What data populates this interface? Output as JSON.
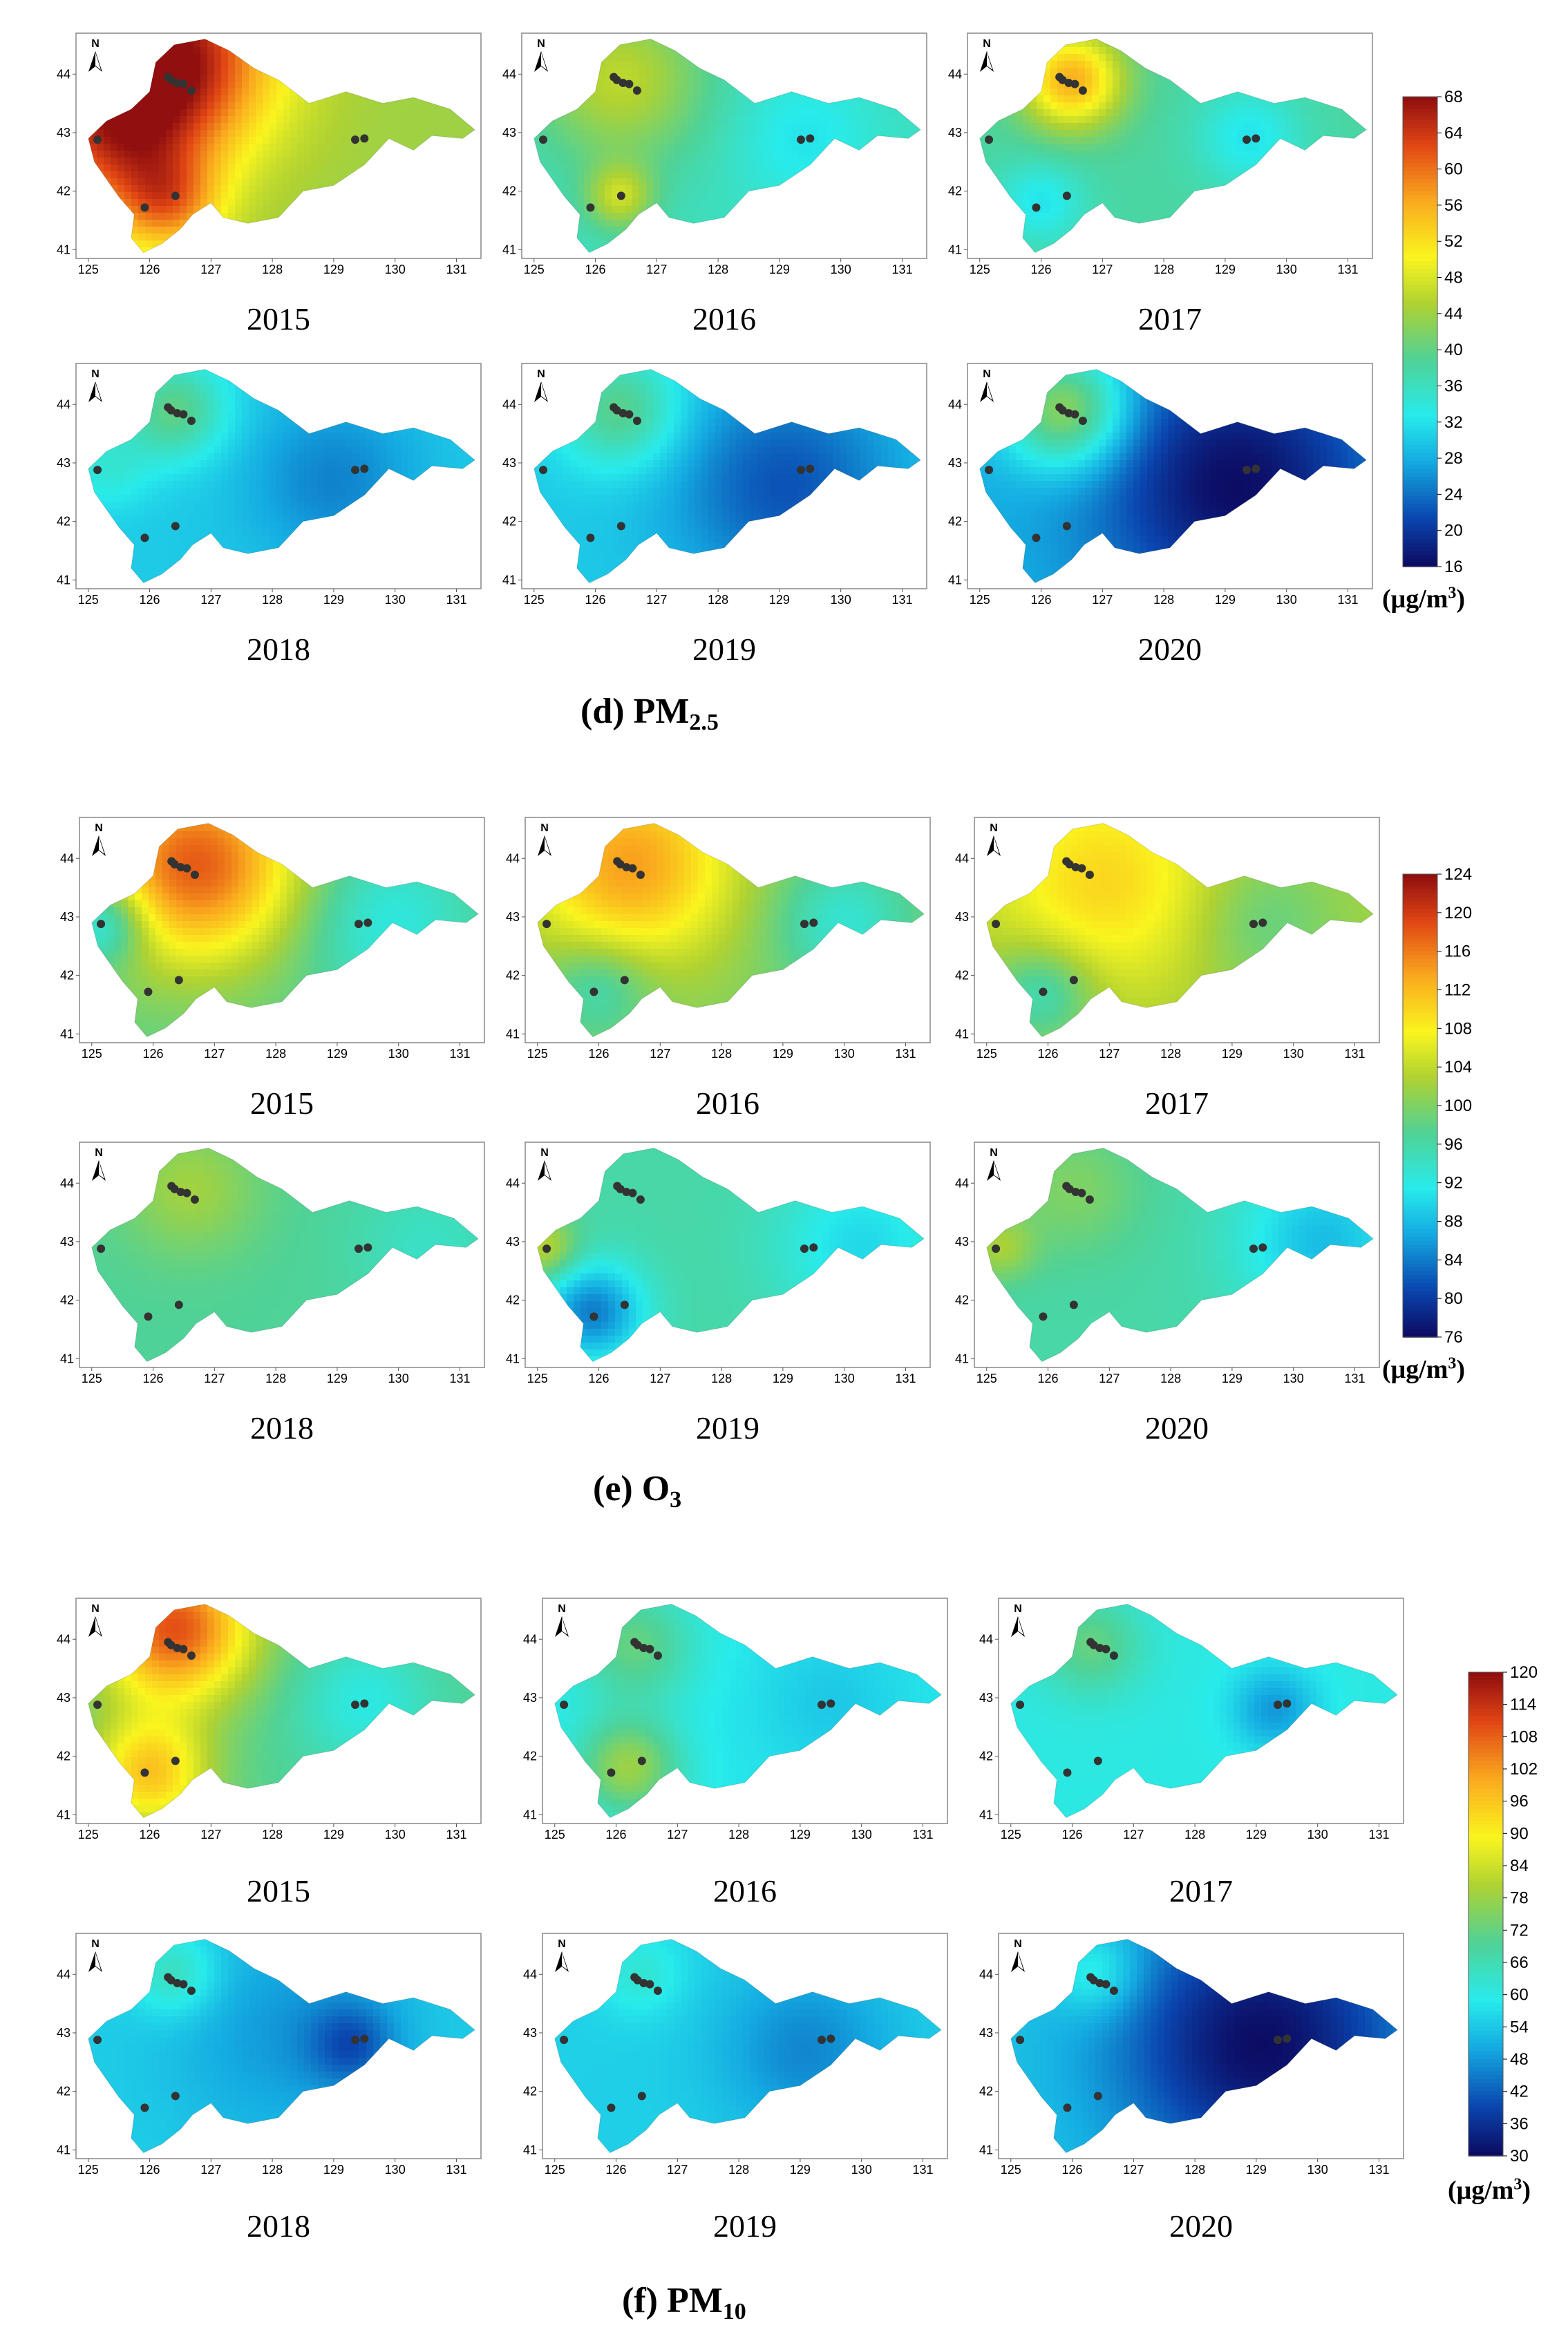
{
  "chart_data": [
    {
      "type": "heatmap",
      "panel": "d",
      "title": "(d) PM",
      "title_sub": "2.5",
      "pollutant": "PM2.5",
      "unit_prefix": "(μg/m",
      "unit_sup": "3",
      "unit_suffix": ")",
      "colorbar": {
        "ticks": [
          68,
          64,
          60,
          56,
          52,
          48,
          44,
          40,
          36,
          32,
          28,
          24,
          20,
          16
        ],
        "range": [
          16,
          68
        ]
      },
      "x_ticks": [
        "125",
        "126",
        "127",
        "128",
        "129",
        "130",
        "131"
      ],
      "y_ticks": [
        "44",
        "43",
        "42",
        "41"
      ],
      "north_label": "N",
      "years": [
        "2015",
        "2016",
        "2017",
        "2018",
        "2019",
        "2020"
      ],
      "maps": [
        {
          "year": "2015",
          "base": 44,
          "hotspots": [
            {
              "lon": 126.3,
              "lat": 44.3,
              "value": 68,
              "r": 1.2
            },
            {
              "lon": 125.3,
              "lat": 42.9,
              "value": 58,
              "r": 1.0
            },
            {
              "lon": 126.3,
              "lat": 41.8,
              "value": 56,
              "r": 0.6
            }
          ]
        },
        {
          "year": "2016",
          "base": 36,
          "hotspots": [
            {
              "lon": 126.4,
              "lat": 43.9,
              "value": 46,
              "r": 1.0
            },
            {
              "lon": 126.4,
              "lat": 41.9,
              "value": 46,
              "r": 0.4
            },
            {
              "lon": 129.4,
              "lat": 42.9,
              "value": 32,
              "r": 0.8
            }
          ]
        },
        {
          "year": "2017",
          "base": 38,
          "hotspots": [
            {
              "lon": 126.5,
              "lat": 43.9,
              "value": 56,
              "r": 0.6
            },
            {
              "lon": 126.0,
              "lat": 41.8,
              "value": 32,
              "r": 0.5
            },
            {
              "lon": 129.4,
              "lat": 42.9,
              "value": 32,
              "r": 0.6
            }
          ]
        },
        {
          "year": "2018",
          "base": 30,
          "hotspots": [
            {
              "lon": 126.4,
              "lat": 43.9,
              "value": 40,
              "r": 0.6
            },
            {
              "lon": 125.3,
              "lat": 42.9,
              "value": 34,
              "r": 0.5
            },
            {
              "lon": 129.0,
              "lat": 42.7,
              "value": 25,
              "r": 1.0
            }
          ]
        },
        {
          "year": "2019",
          "base": 30,
          "hotspots": [
            {
              "lon": 126.4,
              "lat": 43.9,
              "value": 40,
              "r": 0.7
            },
            {
              "lon": 129.1,
              "lat": 42.6,
              "value": 22,
              "r": 1.3
            }
          ]
        },
        {
          "year": "2020",
          "base": 28,
          "hotspots": [
            {
              "lon": 126.4,
              "lat": 43.9,
              "value": 44,
              "r": 0.7
            },
            {
              "lon": 129.2,
              "lat": 42.6,
              "value": 16,
              "r": 1.6
            }
          ]
        }
      ]
    },
    {
      "type": "heatmap",
      "panel": "e",
      "title": "(e) O",
      "title_sub": "3",
      "pollutant": "O3",
      "unit_prefix": "(μg/m",
      "unit_sup": "3",
      "unit_suffix": ")",
      "colorbar": {
        "ticks": [
          124,
          120,
          116,
          112,
          108,
          104,
          100,
          96,
          92,
          88,
          84,
          80,
          76
        ],
        "range": [
          76,
          124
        ]
      },
      "x_ticks": [
        "125",
        "126",
        "127",
        "128",
        "129",
        "130",
        "131"
      ],
      "y_ticks": [
        "44",
        "43",
        "42",
        "41"
      ],
      "north_label": "N",
      "years": [
        "2015",
        "2016",
        "2017",
        "2018",
        "2019",
        "2020"
      ],
      "maps": [
        {
          "year": "2015",
          "base": 98,
          "hotspots": [
            {
              "lon": 126.7,
              "lat": 43.9,
              "value": 118,
              "r": 1.2
            },
            {
              "lon": 125.2,
              "lat": 42.9,
              "value": 88,
              "r": 0.5
            },
            {
              "lon": 129.8,
              "lat": 42.9,
              "value": 92,
              "r": 1.0
            }
          ]
        },
        {
          "year": "2016",
          "base": 100,
          "hotspots": [
            {
              "lon": 126.5,
              "lat": 43.9,
              "value": 114,
              "r": 1.2
            },
            {
              "lon": 126.0,
              "lat": 41.8,
              "value": 94,
              "r": 0.6
            },
            {
              "lon": 130.0,
              "lat": 42.9,
              "value": 93,
              "r": 0.8
            }
          ]
        },
        {
          "year": "2017",
          "base": 102,
          "hotspots": [
            {
              "lon": 126.9,
              "lat": 43.6,
              "value": 110,
              "r": 1.3
            },
            {
              "lon": 125.9,
              "lat": 41.7,
              "value": 94,
              "r": 0.6
            },
            {
              "lon": 129.5,
              "lat": 42.9,
              "value": 98,
              "r": 0.8
            }
          ]
        },
        {
          "year": "2018",
          "base": 97,
          "hotspots": [
            {
              "lon": 126.6,
              "lat": 43.9,
              "value": 102,
              "r": 0.8
            },
            {
              "lon": 130.5,
              "lat": 42.9,
              "value": 94,
              "r": 0.9
            }
          ]
        },
        {
          "year": "2019",
          "base": 96,
          "hotspots": [
            {
              "lon": 125.9,
              "lat": 41.8,
              "value": 84,
              "r": 0.6
            },
            {
              "lon": 125.1,
              "lat": 42.9,
              "value": 104,
              "r": 0.4
            },
            {
              "lon": 130.3,
              "lat": 42.9,
              "value": 90,
              "r": 1.0
            }
          ]
        },
        {
          "year": "2020",
          "base": 96,
          "hotspots": [
            {
              "lon": 126.4,
              "lat": 43.9,
              "value": 100,
              "r": 0.8
            },
            {
              "lon": 125.2,
              "lat": 42.9,
              "value": 102,
              "r": 0.4
            },
            {
              "lon": 130.5,
              "lat": 43.0,
              "value": 88,
              "r": 1.0
            }
          ]
        }
      ]
    },
    {
      "type": "heatmap",
      "panel": "f",
      "title": "(f) PM",
      "title_sub": "10",
      "pollutant": "PM10",
      "unit_prefix": "(μg/m",
      "unit_sup": "3",
      "unit_suffix": ")",
      "colorbar": {
        "ticks": [
          120,
          114,
          108,
          102,
          96,
          90,
          84,
          78,
          72,
          66,
          60,
          54,
          48,
          42,
          36,
          30
        ],
        "range": [
          30,
          120
        ]
      },
      "x_ticks": [
        "125",
        "126",
        "127",
        "128",
        "129",
        "130",
        "131"
      ],
      "y_ticks": [
        "44",
        "43",
        "42",
        "41"
      ],
      "north_label": "N",
      "years": [
        "2015",
        "2016",
        "2017",
        "2018",
        "2019",
        "2020"
      ],
      "maps": [
        {
          "year": "2015",
          "base": 70,
          "hotspots": [
            {
              "lon": 126.4,
              "lat": 44.2,
              "value": 110,
              "r": 0.9
            },
            {
              "lon": 126.0,
              "lat": 41.7,
              "value": 96,
              "r": 0.7
            },
            {
              "lon": 129.5,
              "lat": 42.9,
              "value": 60,
              "r": 0.8
            }
          ]
        },
        {
          "year": "2016",
          "base": 58,
          "hotspots": [
            {
              "lon": 126.3,
              "lat": 43.9,
              "value": 72,
              "r": 0.7
            },
            {
              "lon": 126.2,
              "lat": 41.8,
              "value": 78,
              "r": 0.6
            },
            {
              "lon": 129.5,
              "lat": 42.9,
              "value": 54,
              "r": 0.8
            }
          ]
        },
        {
          "year": "2017",
          "base": 60,
          "hotspots": [
            {
              "lon": 126.3,
              "lat": 43.9,
              "value": 72,
              "r": 0.6
            },
            {
              "lon": 129.3,
              "lat": 42.8,
              "value": 48,
              "r": 0.5
            }
          ]
        },
        {
          "year": "2018",
          "base": 55,
          "hotspots": [
            {
              "lon": 126.4,
              "lat": 44.0,
              "value": 66,
              "r": 0.5
            },
            {
              "lon": 128.3,
              "lat": 43.0,
              "value": 48,
              "r": 1.4
            },
            {
              "lon": 129.3,
              "lat": 42.8,
              "value": 44,
              "r": 0.5
            }
          ]
        },
        {
          "year": "2019",
          "base": 55,
          "hotspots": [
            {
              "lon": 126.4,
              "lat": 44.0,
              "value": 62,
              "r": 0.5
            },
            {
              "lon": 129.1,
              "lat": 42.7,
              "value": 46,
              "r": 1.0
            }
          ]
        },
        {
          "year": "2020",
          "base": 54,
          "hotspots": [
            {
              "lon": 126.4,
              "lat": 44.0,
              "value": 64,
              "r": 0.5
            },
            {
              "lon": 129.1,
              "lat": 42.8,
              "value": 30,
              "r": 1.7
            }
          ]
        }
      ]
    }
  ]
}
